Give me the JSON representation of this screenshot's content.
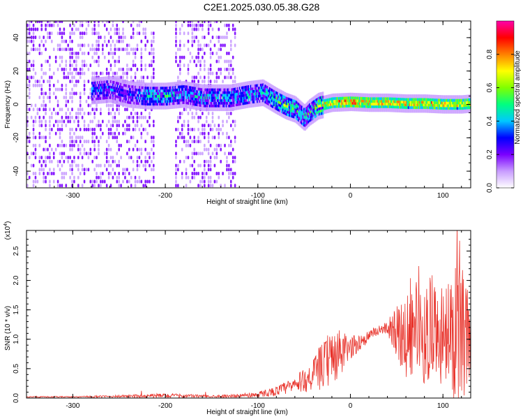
{
  "title": "C2E1.2025.030.05.38.G28",
  "chart_data": [
    {
      "type": "heatmap",
      "xlabel": "Height of straight line (km)",
      "ylabel": "Frequency (Hz)",
      "xlim": [
        -350,
        130
      ],
      "ylim": [
        -50,
        50
      ],
      "xticks": [
        -300,
        -200,
        -100,
        0,
        100
      ],
      "yticks": [
        -40,
        -20,
        0,
        20,
        40
      ],
      "colorbar": {
        "label": "Normalized spectral amplitude",
        "range": [
          0,
          1
        ],
        "ticks": [
          "0.0",
          "0.2",
          "0.4",
          "0.6",
          "0.8"
        ],
        "colors": [
          "#ffffff",
          "#c89cff",
          "#7a00ff",
          "#0000ff",
          "#00c8ff",
          "#00ff80",
          "#80ff00",
          "#ffff00",
          "#ff8000",
          "#ff0000",
          "#ff00aa"
        ]
      },
      "ridge": {
        "x": [
          -280,
          -260,
          -240,
          -220,
          -200,
          -180,
          -160,
          -130,
          -110,
          -95,
          -80,
          -70,
          -60,
          -50,
          -45,
          -35,
          -20,
          0,
          20,
          40,
          60,
          80,
          100,
          120,
          130
        ],
        "y": [
          8,
          9,
          6,
          5,
          5,
          6,
          4,
          4,
          6,
          7,
          2,
          -1,
          -3,
          -8,
          -5,
          -1,
          1,
          1.5,
          1,
          1,
          0.5,
          0.5,
          0,
          0,
          0.5
        ],
        "amplitude": [
          0.35,
          0.35,
          0.3,
          0.45,
          0.5,
          0.4,
          0.45,
          0.4,
          0.45,
          0.45,
          0.55,
          0.6,
          0.55,
          0.5,
          0.5,
          0.65,
          0.8,
          0.85,
          0.8,
          0.8,
          0.75,
          0.8,
          0.8,
          0.75,
          0.7
        ]
      },
      "noise_region_x": [
        -350,
        -125
      ]
    },
    {
      "type": "line",
      "xlabel": "Height of straight line (km)",
      "ylabel": "SNR (10 * v/v)",
      "y_multiplier": "(x10",
      "y_multiplier_exp": "4",
      "y_multiplier_close": ")",
      "xlim": [
        -350,
        130
      ],
      "ylim": [
        0,
        2.85
      ],
      "xticks": [
        -300,
        -200,
        -100,
        0,
        100
      ],
      "yticks": [
        "0.0",
        "0.5",
        "1.0",
        "1.5",
        "2.0",
        "2.5"
      ],
      "series": [
        {
          "color": "#e8322a",
          "x": [
            -350,
            -300,
            -250,
            -200,
            -150,
            -120,
            -100,
            -80,
            -60,
            -50,
            -40,
            -30,
            -20,
            -10,
            0,
            10,
            20,
            30,
            40,
            50,
            60,
            70,
            80,
            90,
            100,
            110,
            120,
            130
          ],
          "y": [
            0.02,
            0.02,
            0.03,
            0.04,
            0.03,
            0.04,
            0.06,
            0.12,
            0.22,
            0.3,
            0.4,
            0.55,
            0.7,
            0.75,
            0.85,
            0.95,
            1.05,
            1.15,
            1.2,
            1.15,
            1.05,
            1.2,
            1.05,
            1.1,
            1.1,
            1.0,
            1.2,
            0.9
          ],
          "spread": [
            0.01,
            0.01,
            0.02,
            0.04,
            0.02,
            0.03,
            0.05,
            0.08,
            0.15,
            0.2,
            0.3,
            0.4,
            0.5,
            0.4,
            0.2,
            0.15,
            0.1,
            0.08,
            0.1,
            0.5,
            0.7,
            0.8,
            0.8,
            0.8,
            0.9,
            1.1,
            1.4,
            0.9
          ]
        }
      ]
    }
  ]
}
